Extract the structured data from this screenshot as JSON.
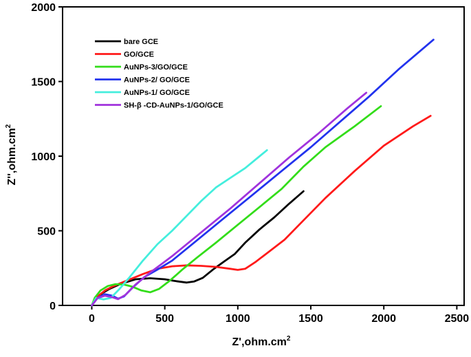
{
  "chart_data": {
    "type": "line",
    "title": "",
    "xlabel": "Z',ohm.cm",
    "xlabel_sup": "2",
    "ylabel": "Z'',ohm.cm",
    "ylabel_sup": "2",
    "xlim": [
      -200,
      2550
    ],
    "ylim": [
      0,
      2000
    ],
    "xticks": [
      0,
      500,
      1000,
      1500,
      2000,
      2500
    ],
    "yticks": [
      0,
      500,
      1000,
      1500,
      2000
    ],
    "grid": false,
    "legend_position": "top-left",
    "series": [
      {
        "name": "bare GCE",
        "color": "#000000",
        "points": [
          [
            0,
            0
          ],
          [
            30,
            40
          ],
          [
            70,
            80
          ],
          [
            120,
            110
          ],
          [
            200,
            145
          ],
          [
            300,
            175
          ],
          [
            400,
            182
          ],
          [
            500,
            175
          ],
          [
            580,
            162
          ],
          [
            650,
            153
          ],
          [
            700,
            160
          ],
          [
            760,
            185
          ],
          [
            830,
            240
          ],
          [
            900,
            290
          ],
          [
            980,
            345
          ],
          [
            1050,
            420
          ],
          [
            1150,
            510
          ],
          [
            1250,
            590
          ],
          [
            1350,
            680
          ],
          [
            1450,
            765
          ]
        ]
      },
      {
        "name": "GO/GCE",
        "color": "#ff1a1a",
        "points": [
          [
            0,
            0
          ],
          [
            40,
            60
          ],
          [
            90,
            100
          ],
          [
            150,
            130
          ],
          [
            250,
            170
          ],
          [
            350,
            210
          ],
          [
            450,
            245
          ],
          [
            550,
            262
          ],
          [
            650,
            268
          ],
          [
            750,
            265
          ],
          [
            850,
            258
          ],
          [
            950,
            245
          ],
          [
            1000,
            238
          ],
          [
            1050,
            245
          ],
          [
            1120,
            290
          ],
          [
            1200,
            350
          ],
          [
            1320,
            440
          ],
          [
            1450,
            570
          ],
          [
            1600,
            720
          ],
          [
            1800,
            900
          ],
          [
            2000,
            1070
          ],
          [
            2200,
            1200
          ],
          [
            2320,
            1270
          ]
        ]
      },
      {
        "name": "AuNPs-3/GO/GCE",
        "color": "#33dd1a",
        "points": [
          [
            0,
            0
          ],
          [
            20,
            50
          ],
          [
            60,
            100
          ],
          [
            110,
            130
          ],
          [
            160,
            142
          ],
          [
            220,
            140
          ],
          [
            280,
            125
          ],
          [
            340,
            100
          ],
          [
            400,
            88
          ],
          [
            460,
            110
          ],
          [
            540,
            170
          ],
          [
            620,
            240
          ],
          [
            720,
            320
          ],
          [
            850,
            420
          ],
          [
            1000,
            540
          ],
          [
            1150,
            660
          ],
          [
            1300,
            780
          ],
          [
            1450,
            930
          ],
          [
            1600,
            1060
          ],
          [
            1800,
            1200
          ],
          [
            1980,
            1335
          ]
        ]
      },
      {
        "name": "AuNPs-2/ GO/GCE",
        "color": "#2233ee",
        "points": [
          [
            0,
            0
          ],
          [
            40,
            50
          ],
          [
            90,
            75
          ],
          [
            140,
            65
          ],
          [
            180,
            45
          ],
          [
            220,
            60
          ],
          [
            280,
            120
          ],
          [
            360,
            190
          ],
          [
            450,
            240
          ],
          [
            550,
            300
          ],
          [
            700,
            420
          ],
          [
            900,
            580
          ],
          [
            1100,
            740
          ],
          [
            1300,
            900
          ],
          [
            1500,
            1060
          ],
          [
            1700,
            1230
          ],
          [
            1900,
            1400
          ],
          [
            2100,
            1580
          ],
          [
            2340,
            1780
          ]
        ]
      },
      {
        "name": "AuNPs-1/ GO/GCE",
        "color": "#44eedd",
        "points": [
          [
            0,
            0
          ],
          [
            30,
            50
          ],
          [
            80,
            40
          ],
          [
            130,
            50
          ],
          [
            190,
            110
          ],
          [
            260,
            190
          ],
          [
            350,
            300
          ],
          [
            450,
            410
          ],
          [
            550,
            500
          ],
          [
            650,
            600
          ],
          [
            750,
            700
          ],
          [
            850,
            790
          ],
          [
            950,
            855
          ],
          [
            1050,
            920
          ],
          [
            1150,
            1000
          ],
          [
            1200,
            1040
          ]
        ]
      },
      {
        "name": "SH-β -CD-AuNPs-1/GO/GCE",
        "color": "#a033dd",
        "points": [
          [
            0,
            0
          ],
          [
            40,
            50
          ],
          [
            90,
            65
          ],
          [
            140,
            55
          ],
          [
            180,
            42
          ],
          [
            230,
            70
          ],
          [
            300,
            140
          ],
          [
            400,
            220
          ],
          [
            550,
            330
          ],
          [
            750,
            490
          ],
          [
            950,
            650
          ],
          [
            1150,
            820
          ],
          [
            1350,
            990
          ],
          [
            1550,
            1150
          ],
          [
            1750,
            1320
          ],
          [
            1880,
            1425
          ]
        ]
      }
    ]
  }
}
